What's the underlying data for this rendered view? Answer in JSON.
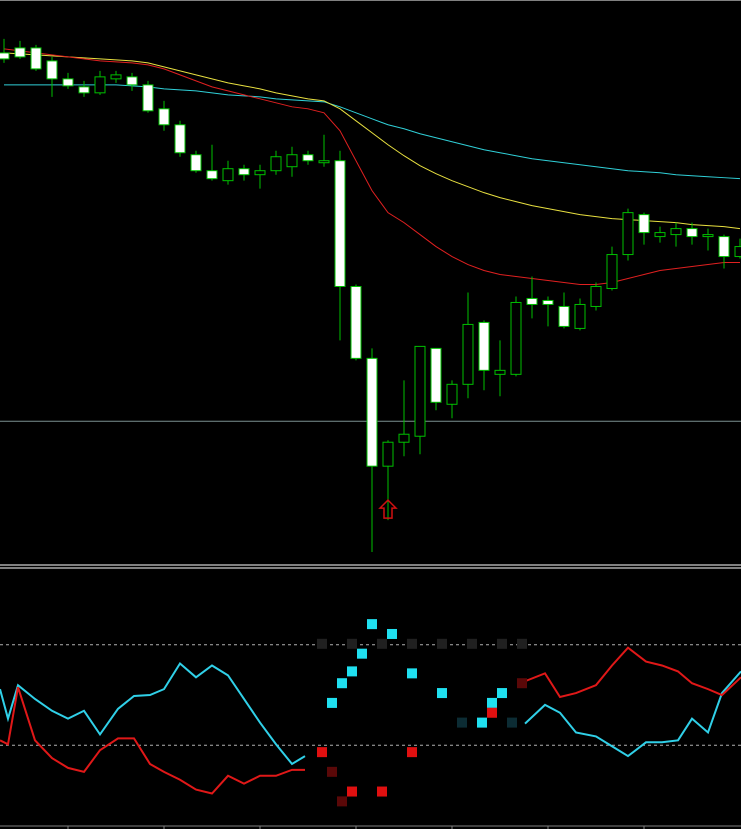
{
  "charts": [
    {
      "chart_data": {
        "type": "candlestick",
        "x": [
          4,
          20,
          36,
          52,
          68,
          84,
          100,
          116,
          132,
          148,
          164,
          180,
          196,
          212,
          228,
          244,
          260,
          276,
          292,
          308,
          324,
          340,
          356,
          372,
          388,
          404,
          420,
          436,
          452,
          468,
          484,
          500,
          516,
          532,
          548,
          564,
          580,
          596,
          612,
          628,
          644,
          660,
          676,
          692,
          708,
          724,
          740
        ],
        "open": [
          513,
          518,
          518,
          505,
          487,
          479,
          473,
          487,
          489,
          481,
          457,
          441,
          411,
          395,
          385,
          397,
          391,
          395,
          399,
          411,
          403,
          405,
          279,
          207,
          99,
          123,
          129,
          217,
          161,
          181,
          243,
          191,
          191,
          267,
          265,
          259,
          237,
          259,
          277,
          311,
          351,
          329,
          331,
          337,
          329,
          329,
          309
        ],
        "close": [
          507,
          509,
          497,
          487,
          480,
          473,
          489,
          491,
          481,
          455,
          441,
          413,
          395,
          387,
          397,
          391,
          395,
          409,
          411,
          405,
          405,
          279,
          207,
          99,
          123,
          131,
          219,
          163,
          181,
          241,
          195,
          195,
          263,
          261,
          261,
          239,
          261,
          279,
          311,
          353,
          333,
          333,
          337,
          329,
          331,
          309,
          319
        ],
        "high": [
          527,
          525,
          521,
          509,
          493,
          485,
          495,
          495,
          493,
          485,
          465,
          445,
          415,
          421,
          405,
          401,
          401,
          415,
          419,
          415,
          431,
          415,
          281,
          217,
          125,
          185,
          219,
          217,
          185,
          273,
          245,
          225,
          269,
          289,
          269,
          273,
          267,
          283,
          319,
          357,
          353,
          339,
          343,
          343,
          337,
          331,
          327
        ],
        "low": [
          503,
          507,
          495,
          469,
          477,
          469,
          471,
          483,
          475,
          453,
          435,
          409,
          393,
          385,
          381,
          385,
          377,
          391,
          389,
          401,
          399,
          225,
          205,
          13,
          45,
          109,
          111,
          155,
          147,
          167,
          175,
          169,
          189,
          247,
          239,
          237,
          235,
          255,
          275,
          305,
          321,
          323,
          319,
          321,
          315,
          297,
          307
        ],
        "up_color": "#000000",
        "down_color": "#ffffff",
        "outline_color": "#00c000",
        "series": [
          {
            "color": "#30d0d8",
            "values": [
              481,
              481,
              481,
              481,
              481,
              481,
              481,
              481,
              480,
              479,
              477,
              476,
              475,
              473,
              471,
              470,
              469,
              467,
              466,
              465,
              464,
              459,
              453,
              447,
              441,
              437,
              432,
              428,
              424,
              420,
              416,
              413,
              410,
              407,
              405,
              403,
              401,
              399,
              397,
              395,
              394,
              393,
              391,
              390,
              389,
              388,
              387
            ]
          },
          {
            "color": "#e8e040",
            "values": [
              513,
              512,
              511,
              510,
              509,
              508,
              507,
              506,
              505,
              503,
              499,
              495,
              491,
              487,
              483,
              480,
              477,
              473,
              470,
              467,
              465,
              457,
              445,
              433,
              421,
              410,
              400,
              392,
              385,
              379,
              373,
              368,
              364,
              360,
              357,
              354,
              351,
              349,
              347,
              346,
              345,
              344,
              343,
              341,
              340,
              339,
              337
            ]
          },
          {
            "color": "#e02020",
            "values": [
              517,
              515,
              513,
              511,
              509,
              507,
              505,
              504,
              503,
              501,
              497,
              491,
              485,
              479,
              475,
              471,
              467,
              463,
              459,
              457,
              453,
              435,
              405,
              375,
              353,
              343,
              331,
              319,
              309,
              301,
              295,
              291,
              289,
              287,
              285,
              283,
              281,
              281,
              283,
              287,
              291,
              295,
              297,
              299,
              301,
              303,
              303
            ]
          }
        ],
        "hline": 144,
        "hline_color": "#7a9090",
        "arrow": {
          "x": 388,
          "value": 65,
          "color": "#d01010"
        },
        "xlim": [
          0,
          741
        ],
        "ylim": [
          0,
          565
        ]
      }
    },
    {
      "chart_data": {
        "type": "line",
        "x": [
          0,
          8,
          18,
          35,
          52,
          68,
          84,
          100,
          118,
          134,
          150,
          164,
          180,
          196,
          212,
          228,
          244,
          260,
          276,
          292,
          305,
          415,
          525,
          545,
          560,
          576,
          596,
          612,
          628,
          646,
          662,
          678,
          692,
          708,
          722,
          741
        ],
        "series": [
          {
            "color": "#30d0e8",
            "values": [
              139,
              109,
              143,
              129,
              117,
              109,
              117,
              93,
              119,
              132,
              133,
              139,
              165,
              151,
              163,
              153,
              129,
              105,
              83,
              63,
              71,
              null,
              104,
              123,
              115,
              95,
              91,
              81,
              71,
              85,
              85,
              87,
              109,
              95,
              135,
              157
            ]
          },
          {
            "color": "#e01818",
            "values": [
              87,
              83,
              141,
              87,
              69,
              59,
              55,
              77,
              89,
              89,
              63,
              55,
              47,
              37,
              33,
              51,
              43,
              51,
              51,
              57,
              57,
              null,
              147,
              155,
              131,
              135,
              143,
              163,
              181,
              167,
              163,
              157,
              145,
              139,
              133,
              151
            ]
          }
        ],
        "points": [
          {
            "color": "#20e0f0",
            "x": [
              372,
              392,
              362,
              352,
              342,
              332,
              412,
              442,
              502,
              492,
              482
            ],
            "values": [
              205,
              195,
              175,
              157,
              145,
              125,
              155,
              135,
              135,
              125,
              105
            ]
          },
          {
            "color": "#e01010",
            "x": [
              322,
              412,
              492,
              352,
              382
            ],
            "values": [
              75,
              75,
              115,
              35,
              35
            ]
          },
          {
            "color": "#5a0808",
            "x": [
              522,
              332,
              342
            ],
            "values": [
              145,
              55,
              25
            ]
          },
          {
            "color": "#202020",
            "x": [
              322,
              352,
              382,
              412,
              442,
              472,
              502,
              522
            ],
            "values": [
              185,
              185,
              185,
              185,
              185,
              185,
              185,
              185
            ]
          },
          {
            "color": "#0c2c34",
            "x": [
              462,
              512
            ],
            "values": [
              105,
              105
            ]
          }
        ],
        "levels": [
          82,
          184
        ],
        "xlim": [
          0,
          741
        ],
        "ylim": [
          0,
          262
        ]
      }
    }
  ]
}
